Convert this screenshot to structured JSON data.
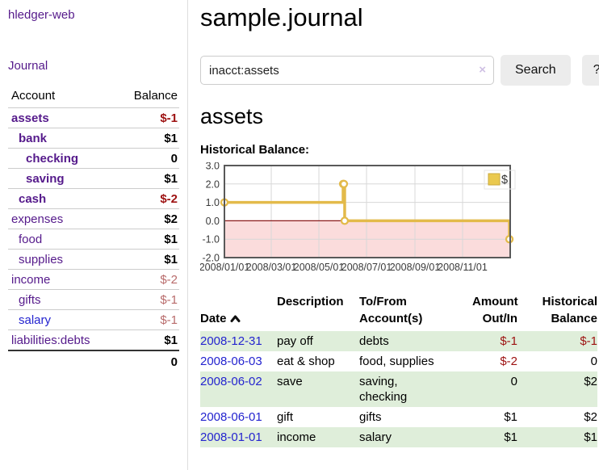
{
  "sidebar": {
    "brand": "hledger-web",
    "journal_link": "Journal",
    "accounts_table": {
      "account_header": "Account",
      "balance_header": "Balance",
      "rows": [
        {
          "name": "assets",
          "balance": "$-1",
          "level": 1,
          "emphasis": true,
          "balance_style": "neg-strong",
          "link_style": "purple"
        },
        {
          "name": "bank",
          "balance": "$1",
          "level": 2,
          "emphasis": true,
          "balance_style": "pos",
          "link_style": "purple"
        },
        {
          "name": "checking",
          "balance": "0",
          "level": 3,
          "emphasis": true,
          "balance_style": "pos",
          "link_style": "purple"
        },
        {
          "name": "saving",
          "balance": "$1",
          "level": 3,
          "emphasis": true,
          "balance_style": "pos",
          "link_style": "purple"
        },
        {
          "name": "cash",
          "balance": "$-2",
          "level": 2,
          "emphasis": true,
          "balance_style": "neg-strong",
          "link_style": "purple"
        },
        {
          "name": "expenses",
          "balance": "$2",
          "level": 1,
          "emphasis": false,
          "balance_style": "pos",
          "link_style": "purple"
        },
        {
          "name": "food",
          "balance": "$1",
          "level": 2,
          "emphasis": false,
          "balance_style": "pos",
          "link_style": "purple"
        },
        {
          "name": "supplies",
          "balance": "$1",
          "level": 2,
          "emphasis": false,
          "balance_style": "pos",
          "link_style": "purple"
        },
        {
          "name": "income",
          "balance": "$-2",
          "level": 1,
          "emphasis": false,
          "balance_style": "neg-soft",
          "link_style": "purple"
        },
        {
          "name": "gifts",
          "balance": "$-1",
          "level": 2,
          "emphasis": false,
          "balance_style": "neg-soft",
          "link_style": "purple"
        },
        {
          "name": "salary",
          "balance": "$-1",
          "level": 2,
          "emphasis": false,
          "balance_style": "neg-soft",
          "link_style": "blue"
        },
        {
          "name": "liabilities:debts",
          "balance": "$1",
          "level": 1,
          "emphasis": false,
          "balance_style": "pos",
          "link_style": "purple"
        }
      ],
      "total": "0"
    }
  },
  "header": {
    "title": "sample.journal"
  },
  "search": {
    "value": "inacct:assets",
    "clear_label": "×",
    "button_label": "Search",
    "help_label": "?"
  },
  "account_page": {
    "heading": "assets",
    "chart_title": "Historical Balance:"
  },
  "chart_data": {
    "type": "line",
    "title": "Historical Balance:",
    "step": true,
    "series": [
      {
        "name": "$",
        "color": "#E3BA4A",
        "x": [
          "2008-01-01",
          "2008-06-01",
          "2008-06-02",
          "2008-06-03",
          "2008-12-31"
        ],
        "y": [
          1,
          2,
          2,
          0,
          -1
        ]
      }
    ],
    "xlim": [
      "2008-01-01",
      "2009-01-01"
    ],
    "ylim": [
      -2,
      3
    ],
    "yticks": [
      {
        "value": 3,
        "label": "3.0"
      },
      {
        "value": 2,
        "label": "2.0"
      },
      {
        "value": 1,
        "label": "1.0"
      },
      {
        "value": 0,
        "label": "0.0"
      },
      {
        "value": -1,
        "label": "-1.0"
      },
      {
        "value": -2,
        "label": "-2.0"
      }
    ],
    "xticks": [
      {
        "date": "2008-01-01",
        "label": "2008/01/01"
      },
      {
        "date": "2008-03-01",
        "label": "2008/03/01"
      },
      {
        "date": "2008-05-01",
        "label": "2008/05/01"
      },
      {
        "date": "2008-07-01",
        "label": "2008/07/01"
      },
      {
        "date": "2008-09-01",
        "label": "2008/09/01"
      },
      {
        "date": "2008-11-01",
        "label": "2008/11/01"
      }
    ],
    "grid": true,
    "legend": {
      "label": "$",
      "position": "top-right"
    },
    "zero_line_color": "#8B1A1A",
    "negative_region_color": "#FBDCDC"
  },
  "register": {
    "headers": {
      "date": "Date",
      "description": "Description",
      "accounts": "To/From\nAccount(s)",
      "amount": "Amount\nOut/In",
      "balance": "Historical\nBalance"
    },
    "rows": [
      {
        "date": "2008-12-31",
        "description": "pay off",
        "accounts": "debts",
        "amount": "$-1",
        "amount_negative": true,
        "balance": "$-1",
        "balance_negative": true
      },
      {
        "date": "2008-06-03",
        "description": "eat & shop",
        "accounts": "food, supplies",
        "amount": "$-2",
        "amount_negative": true,
        "balance": "0",
        "balance_negative": false
      },
      {
        "date": "2008-06-02",
        "description": "save",
        "accounts": "saving,\nchecking",
        "amount": "0",
        "amount_negative": false,
        "balance": "$2",
        "balance_negative": false
      },
      {
        "date": "2008-06-01",
        "description": "gift",
        "accounts": "gifts",
        "amount": "$1",
        "amount_negative": false,
        "balance": "$2",
        "balance_negative": false
      },
      {
        "date": "2008-01-01",
        "description": "income",
        "accounts": "salary",
        "amount": "$1",
        "amount_negative": false,
        "balance": "$1",
        "balance_negative": false
      }
    ]
  }
}
